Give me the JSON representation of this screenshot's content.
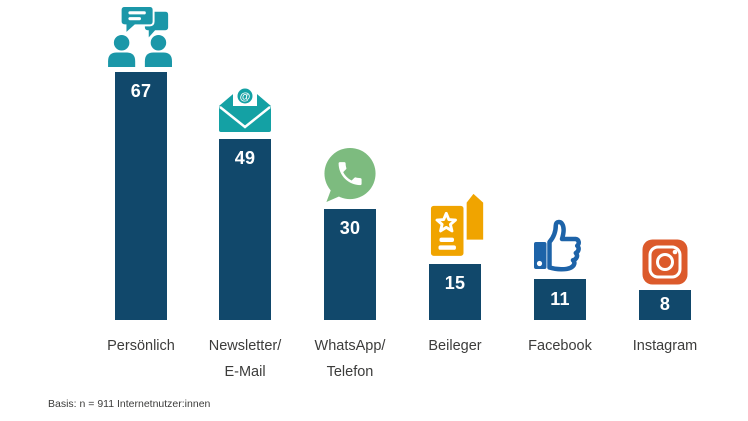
{
  "chart_data": {
    "type": "bar",
    "title": "",
    "categories": [
      [
        "Persönlich"
      ],
      [
        "Newsletter/",
        "E-Mail"
      ],
      [
        "WhatsApp/",
        "Telefon"
      ],
      [
        "Beileger"
      ],
      [
        "Facebook"
      ],
      [
        "Instagram"
      ]
    ],
    "values": [
      67,
      49,
      30,
      15,
      11,
      8
    ],
    "value_labels": [
      "67",
      "49",
      "30",
      "15",
      "11",
      "8"
    ],
    "ylim": [
      0,
      70
    ],
    "grid": false,
    "legend": null,
    "bar_color": "#11486B",
    "value_label_color": "#FFFFFF",
    "category_label_color": "#3C3C3B",
    "icons": [
      {
        "name": "people-chat-icon",
        "color": "#1B97A8"
      },
      {
        "name": "email-envelope-icon",
        "color": "#14A1A4"
      },
      {
        "name": "whatsapp-icon",
        "color": "#7DBB7F"
      },
      {
        "name": "flyer-icon",
        "color": "#F0A400"
      },
      {
        "name": "thumbs-up-icon",
        "color": "#1D63A8"
      },
      {
        "name": "instagram-icon",
        "color": "#DC5A2B"
      }
    ],
    "note": "Basis: n = 911 Internetnutzer:innen"
  }
}
